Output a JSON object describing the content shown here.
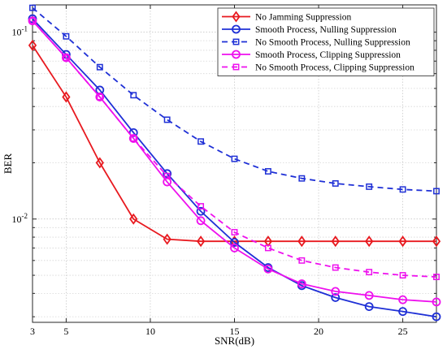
{
  "chart_data": {
    "type": "line",
    "title": "",
    "xlabel": "SNR(dB)",
    "ylabel": "BER",
    "y_scale": "log",
    "xlim": [
      3,
      27
    ],
    "ylim": [
      0.0028,
      0.14
    ],
    "x_ticks": [
      3,
      5,
      10,
      15,
      20,
      25
    ],
    "x_tick_labels": [
      "3",
      "5",
      "10",
      "15",
      "20",
      "25"
    ],
    "y_ticks": [
      0.01,
      0.1
    ],
    "y_tick_labels": [
      {
        "base": "10",
        "exp": "-2"
      },
      {
        "base": "10",
        "exp": "-1"
      }
    ],
    "grid": true,
    "legend_position": "top-right",
    "x": [
      3,
      5,
      7,
      9,
      11,
      13,
      15,
      17,
      19,
      21,
      23,
      25,
      27
    ],
    "series": [
      {
        "name": "No Jamming Suppression",
        "color": "#e8191f",
        "dashed": false,
        "marker": "diamond",
        "values": [
          0.085,
          0.045,
          0.02,
          0.01,
          0.0078,
          0.0076,
          0.0076,
          0.0076,
          0.0076,
          0.0076,
          0.0076,
          0.0076,
          0.0076
        ]
      },
      {
        "name": "Smooth Process, Nulling Suppression",
        "color": "#1f30d6",
        "dashed": false,
        "marker": "circle",
        "values": [
          0.118,
          0.076,
          0.049,
          0.029,
          0.0175,
          0.011,
          0.0075,
          0.0055,
          0.0044,
          0.0038,
          0.0034,
          0.0032,
          0.003
        ]
      },
      {
        "name": "No Smooth Process, Nulling Suppression",
        "color": "#1f30d6",
        "dashed": true,
        "marker": "square",
        "values": [
          0.135,
          0.095,
          0.065,
          0.046,
          0.034,
          0.026,
          0.021,
          0.018,
          0.0165,
          0.0155,
          0.0149,
          0.0144,
          0.0141
        ]
      },
      {
        "name": "Smooth Process, Clipping Suppression",
        "color": "#ee10ee",
        "dashed": false,
        "marker": "circle",
        "values": [
          0.115,
          0.073,
          0.045,
          0.027,
          0.0158,
          0.0098,
          0.007,
          0.0054,
          0.0045,
          0.0041,
          0.0039,
          0.0037,
          0.0036
        ]
      },
      {
        "name": "No Smooth Process, Clipping Suppression",
        "color": "#ee10ee",
        "dashed": true,
        "marker": "square",
        "values": [
          0.115,
          0.073,
          0.045,
          0.027,
          0.017,
          0.0117,
          0.0085,
          0.007,
          0.006,
          0.0055,
          0.0052,
          0.005,
          0.0049
        ]
      }
    ]
  }
}
